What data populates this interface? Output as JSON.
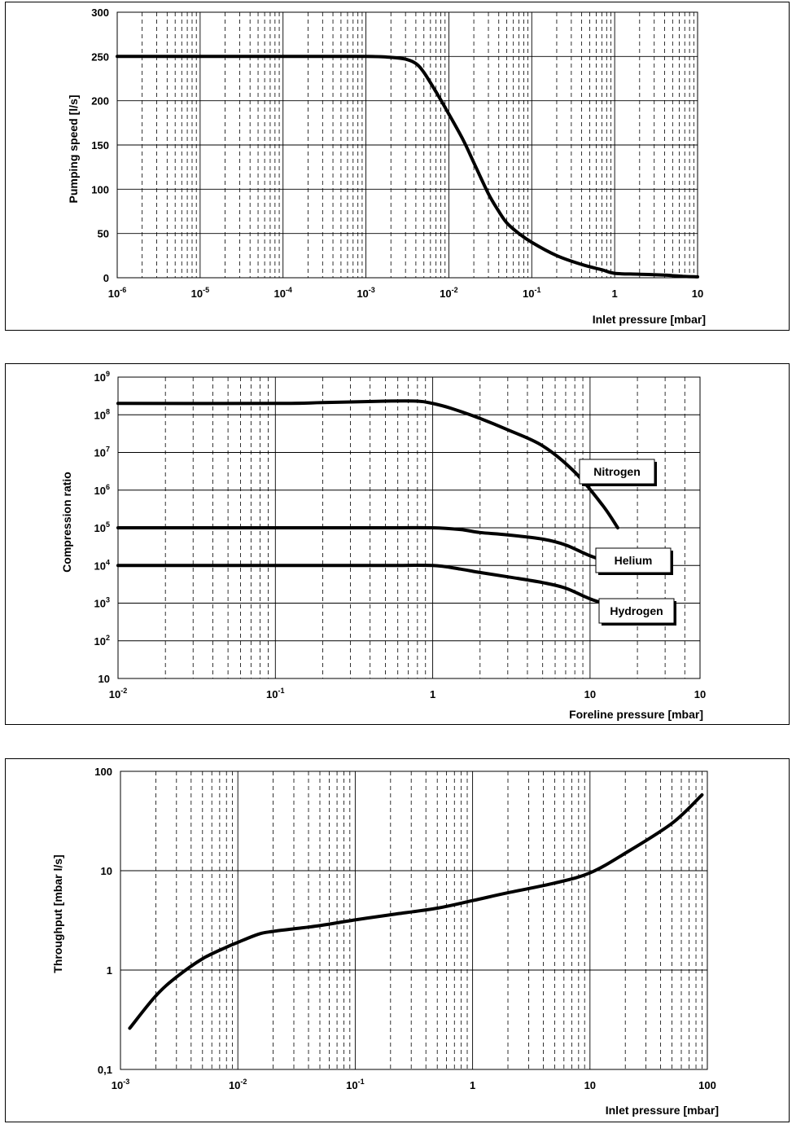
{
  "chart_data": [
    {
      "type": "line",
      "id": "speed",
      "xscale": "log",
      "yscale": "linear",
      "xlim": [
        1e-06,
        10
      ],
      "ylim": [
        0,
        300
      ],
      "xlabel": "Inlet pressure [mbar]",
      "ylabel": "Pumping speed [l/s]",
      "x_ticks": [
        {
          "base": "10",
          "exp": "-6"
        },
        {
          "base": "10",
          "exp": "-5"
        },
        {
          "base": "10",
          "exp": "-4"
        },
        {
          "base": "10",
          "exp": "-3"
        },
        {
          "base": "10",
          "exp": "-2"
        },
        {
          "base": "10",
          "exp": "-1"
        },
        {
          "base": "1",
          "exp": ""
        },
        {
          "base": "10",
          "exp": ""
        }
      ],
      "y_ticks": [
        "0",
        "50",
        "100",
        "150",
        "200",
        "250",
        "300"
      ],
      "series": [
        {
          "name": "Pumping speed",
          "x": [
            1e-06,
            1e-05,
            0.0001,
            0.001,
            0.002,
            0.003,
            0.004,
            0.005,
            0.007,
            0.01,
            0.015,
            0.02,
            0.03,
            0.04,
            0.05,
            0.07,
            0.1,
            0.2,
            0.4,
            0.7,
            1,
            2,
            4,
            7,
            10
          ],
          "y": [
            250,
            250,
            250,
            250,
            249,
            247,
            242,
            232,
            210,
            185,
            155,
            130,
            95,
            75,
            62,
            50,
            40,
            25,
            15,
            9,
            5,
            4,
            3,
            1.5,
            1
          ]
        }
      ]
    },
    {
      "type": "line",
      "id": "compression",
      "xscale": "log",
      "yscale": "log",
      "xlim": [
        0.01,
        50
      ],
      "ylim": [
        10,
        1000000000.0
      ],
      "xlabel": "Foreline pressure [mbar]",
      "ylabel": "Compression ratio",
      "x_ticks": [
        {
          "base": "10",
          "exp": "-2"
        },
        {
          "base": "10",
          "exp": "-1"
        },
        {
          "base": "1",
          "exp": ""
        },
        {
          "base": "10",
          "exp": ""
        },
        {
          "base": "10",
          "exp": ""
        }
      ],
      "y_ticks": [
        {
          "base": "10",
          "exp": ""
        },
        {
          "base": "10",
          "exp": "2"
        },
        {
          "base": "10",
          "exp": "3"
        },
        {
          "base": "10",
          "exp": "4"
        },
        {
          "base": "10",
          "exp": "5"
        },
        {
          "base": "10",
          "exp": "6"
        },
        {
          "base": "10",
          "exp": "7"
        },
        {
          "base": "10",
          "exp": "8"
        },
        {
          "base": "10",
          "exp": "9"
        }
      ],
      "series": [
        {
          "name": "Nitrogen",
          "x": [
            0.01,
            0.1,
            0.2,
            0.5,
            0.8,
            1,
            1.3,
            2,
            3,
            5,
            8,
            12,
            15
          ],
          "y": [
            200000000.0,
            200000000.0,
            210000000.0,
            230000000.0,
            230000000.0,
            200000000.0,
            150000000.0,
            80000000.0,
            40000000.0,
            15000000.0,
            3000000.0,
            400000.0,
            100000.0
          ]
        },
        {
          "name": "Helium",
          "x": [
            0.01,
            0.1,
            0.5,
            1,
            1.5,
            2,
            3,
            5,
            7,
            10,
            15
          ],
          "y": [
            100000.0,
            100000.0,
            100000.0,
            100000.0,
            90000.0,
            75000.0,
            65000.0,
            50000.0,
            35000.0,
            18000.0,
            10000.0
          ]
        },
        {
          "name": "Hydrogen",
          "x": [
            0.01,
            0.1,
            0.5,
            1,
            1.5,
            2,
            3,
            5,
            7,
            10,
            15
          ],
          "y": [
            10000.0,
            10000.0,
            10000.0,
            10000.0,
            8000.0,
            6500.0,
            5000.0,
            3500.0,
            2500.0,
            1300.0,
            750.0
          ]
        }
      ],
      "labels": [
        "Nitrogen",
        "Helium",
        "Hydrogen"
      ]
    },
    {
      "type": "line",
      "id": "throughput",
      "xscale": "log",
      "yscale": "log",
      "xlim": [
        0.001,
        100
      ],
      "ylim": [
        0.1,
        100
      ],
      "xlabel": "Inlet pressure [mbar]",
      "ylabel": "Throughput [mbar l/s]",
      "x_ticks": [
        {
          "base": "10",
          "exp": "-3"
        },
        {
          "base": "10",
          "exp": "-2"
        },
        {
          "base": "10",
          "exp": "-1"
        },
        {
          "base": "1",
          "exp": ""
        },
        {
          "base": "10",
          "exp": ""
        },
        {
          "base": "100",
          "exp": ""
        }
      ],
      "y_ticks": [
        "0,1",
        "1",
        "10",
        "100"
      ],
      "series": [
        {
          "name": "Throughput",
          "x": [
            0.0012,
            0.002,
            0.003,
            0.005,
            0.008,
            0.01,
            0.015,
            0.02,
            0.03,
            0.05,
            0.1,
            0.2,
            0.5,
            1,
            2,
            5,
            10,
            20,
            50,
            90
          ],
          "y": [
            0.26,
            0.55,
            0.85,
            1.3,
            1.7,
            1.9,
            2.3,
            2.45,
            2.6,
            2.8,
            3.2,
            3.6,
            4.2,
            5,
            6,
            7.5,
            9.5,
            15,
            30,
            58
          ]
        }
      ]
    }
  ]
}
